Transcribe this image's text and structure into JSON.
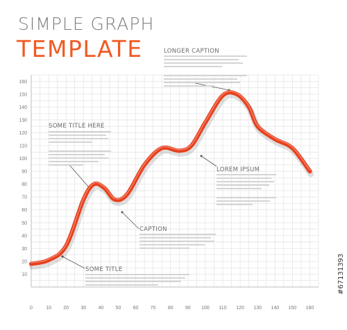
{
  "header": {
    "title_line1": "SIMPLE GRAPH",
    "title_line2": "TEMPLATE"
  },
  "captions": [
    {
      "title": "LONGER CAPTION"
    },
    {
      "title": "SOME TITLE HERE"
    },
    {
      "title": "LOREM IPSUM"
    },
    {
      "title": "CAPTION"
    },
    {
      "title": "SOME TITLE"
    }
  ],
  "watermark": "#67131393",
  "colors": {
    "curve": "#e8401c",
    "accent": "#f05a24",
    "grid": "#dedede",
    "text": "#6a6a6a"
  },
  "chart_data": {
    "type": "line",
    "title": "SIMPLE GRAPH TEMPLATE",
    "xlabel": "",
    "ylabel": "",
    "xlim": [
      0,
      165
    ],
    "ylim": [
      0,
      165
    ],
    "x_ticks": [
      0,
      10,
      20,
      30,
      40,
      50,
      60,
      70,
      80,
      90,
      100,
      110,
      120,
      130,
      140,
      150,
      160
    ],
    "y_ticks": [
      10,
      20,
      30,
      40,
      50,
      60,
      70,
      80,
      90,
      100,
      110,
      120,
      130,
      140,
      150,
      160
    ],
    "grid": true,
    "x": [
      0,
      10,
      20,
      30,
      36,
      42,
      48,
      55,
      65,
      75,
      85,
      92,
      100,
      110,
      118,
      125,
      130,
      140,
      150,
      160
    ],
    "series": [
      {
        "values": [
          18,
          21,
          32,
          68,
          80,
          77,
          68,
          72,
          95,
          108,
          106,
          110,
          128,
          149,
          150,
          140,
          125,
          115,
          108,
          90
        ]
      }
    ]
  }
}
